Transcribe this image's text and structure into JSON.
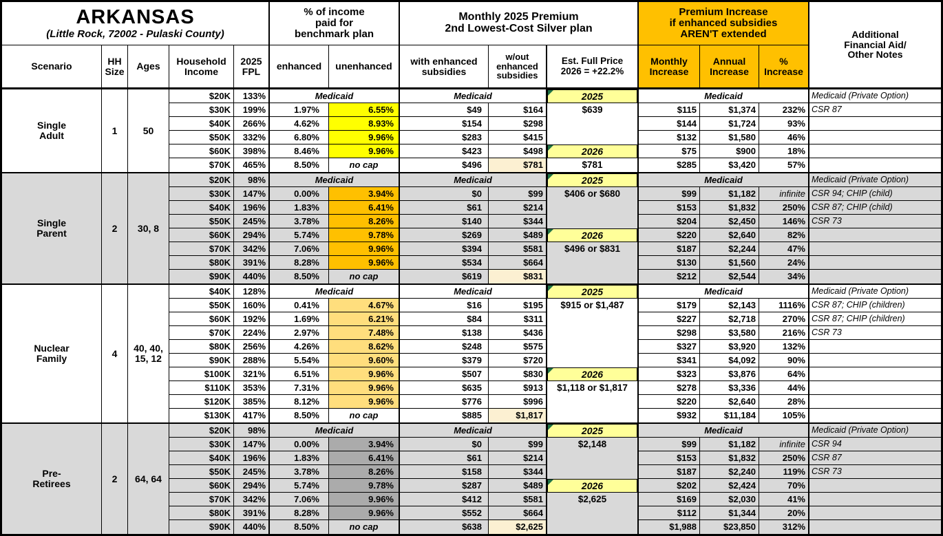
{
  "title": {
    "state": "ARKANSAS",
    "location": "(Little Rock, 72002 - Pulaski County)"
  },
  "headers": {
    "benchmark_block": "% of income\npaid for\nbenchmark plan",
    "premium_block": "Monthly 2025 Premium\n2nd Lowest-Cost Silver plan",
    "increase_block": "Premium Increase\nif enhanced subsidies\nAREN'T extended",
    "notes_block": "Additional\nFinancial Aid/\nOther Notes",
    "cols": {
      "scenario": "Scenario",
      "hh": "HH\nSize",
      "ages": "Ages",
      "income": "Household\nIncome",
      "fpl": "2025\nFPL",
      "enhanced": "enhanced",
      "unenhanced": "unenhanced",
      "with_sub": "with enhanced\nsubsidies",
      "wo_sub": "w/out\nenhanced\nsubsidies",
      "full_price": "Est. Full Price\n2026 = +22.2%",
      "monthly": "Monthly\nIncrease",
      "annual": "Annual\nIncrease",
      "pct": "%\nIncrease"
    }
  },
  "colors": {
    "header_orange": "#FFC000",
    "year_yellow": "#FFFF99",
    "cream": "#FCF0D2",
    "group_gray": "#D9D9D9",
    "hl_single_adult": "#FFFF00",
    "hl_single_parent": "#FFC000",
    "hl_nuclear": "#FFDE7D",
    "hl_preretirees": "#ABABAB",
    "marker_green": "#1E7145"
  },
  "medicaid_label": "Medicaid",
  "no_cap_label": "no cap",
  "groups": [
    {
      "id": "single-adult",
      "scenario": "Single\nAdult",
      "hh": "1",
      "ages": "50",
      "bg": "#FFFFFF",
      "hl": "#FFFF00",
      "rows": [
        {
          "income": "$20K",
          "fpl": "133%",
          "medicaid": true,
          "note": "Medicaid (Private Option)"
        },
        {
          "income": "$30K",
          "fpl": "199%",
          "enhanced": "1.97%",
          "unenhanced": "6.55%",
          "with_sub": "$49",
          "wo_sub": "$164",
          "monthly": "$115",
          "annual": "$1,374",
          "pct": "232%",
          "note": "CSR 87"
        },
        {
          "income": "$40K",
          "fpl": "266%",
          "enhanced": "4.62%",
          "unenhanced": "8.93%",
          "with_sub": "$154",
          "wo_sub": "$298",
          "monthly": "$144",
          "annual": "$1,724",
          "pct": "93%"
        },
        {
          "income": "$50K",
          "fpl": "332%",
          "enhanced": "6.80%",
          "unenhanced": "9.96%",
          "with_sub": "$283",
          "wo_sub": "$415",
          "monthly": "$132",
          "annual": "$1,580",
          "pct": "46%"
        },
        {
          "income": "$60K",
          "fpl": "398%",
          "enhanced": "8.46%",
          "unenhanced": "9.96%",
          "with_sub": "$423",
          "wo_sub": "$498",
          "monthly": "$75",
          "annual": "$900",
          "pct": "18%"
        },
        {
          "income": "$70K",
          "fpl": "465%",
          "enhanced": "8.50%",
          "no_cap": true,
          "with_sub": "$496",
          "wo_sub": "$781",
          "wo_cream": true,
          "monthly": "$285",
          "annual": "$3,420",
          "pct": "57%"
        }
      ],
      "full_price": [
        {
          "row": 0,
          "type": "year",
          "text": "2025"
        },
        {
          "row": 1,
          "type": "value",
          "text": "$639"
        },
        {
          "row": 4,
          "type": "year",
          "text": "2026"
        },
        {
          "row": 5,
          "type": "value",
          "text": "$781"
        }
      ]
    },
    {
      "id": "single-parent",
      "scenario": "Single\nParent",
      "hh": "2",
      "ages": "30, 8",
      "bg": "#D9D9D9",
      "hl": "#FFC000",
      "rows": [
        {
          "income": "$20K",
          "fpl": "98%",
          "medicaid": true,
          "note": "Medicaid (Private Option)"
        },
        {
          "income": "$30K",
          "fpl": "147%",
          "enhanced": "0.00%",
          "unenhanced": "3.94%",
          "with_sub": "$0",
          "wo_sub": "$99",
          "monthly": "$99",
          "annual": "$1,182",
          "pct": "infinite",
          "pct_infinite": true,
          "note": "CSR 94; CHIP (child)"
        },
        {
          "income": "$40K",
          "fpl": "196%",
          "enhanced": "1.83%",
          "unenhanced": "6.41%",
          "with_sub": "$61",
          "wo_sub": "$214",
          "monthly": "$153",
          "annual": "$1,832",
          "pct": "250%",
          "note": "CSR 87; CHIP (child)"
        },
        {
          "income": "$50K",
          "fpl": "245%",
          "enhanced": "3.78%",
          "unenhanced": "8.26%",
          "with_sub": "$140",
          "wo_sub": "$344",
          "monthly": "$204",
          "annual": "$2,450",
          "pct": "146%",
          "note": "CSR 73"
        },
        {
          "income": "$60K",
          "fpl": "294%",
          "enhanced": "5.74%",
          "unenhanced": "9.78%",
          "with_sub": "$269",
          "wo_sub": "$489",
          "monthly": "$220",
          "annual": "$2,640",
          "pct": "82%"
        },
        {
          "income": "$70K",
          "fpl": "342%",
          "enhanced": "7.06%",
          "unenhanced": "9.96%",
          "with_sub": "$394",
          "wo_sub": "$581",
          "monthly": "$187",
          "annual": "$2,244",
          "pct": "47%"
        },
        {
          "income": "$80K",
          "fpl": "391%",
          "enhanced": "8.28%",
          "unenhanced": "9.96%",
          "with_sub": "$534",
          "wo_sub": "$664",
          "monthly": "$130",
          "annual": "$1,560",
          "pct": "24%"
        },
        {
          "income": "$90K",
          "fpl": "440%",
          "enhanced": "8.50%",
          "no_cap": true,
          "with_sub": "$619",
          "wo_sub": "$831",
          "wo_cream": true,
          "monthly": "$212",
          "annual": "$2,544",
          "pct": "34%"
        }
      ],
      "full_price": [
        {
          "row": 0,
          "type": "year",
          "text": "2025"
        },
        {
          "row": 1,
          "type": "value",
          "text": "$406 or $680"
        },
        {
          "row": 4,
          "type": "year",
          "text": "2026"
        },
        {
          "row": 5,
          "type": "value",
          "text": "$496 or $831"
        }
      ]
    },
    {
      "id": "nuclear-family",
      "scenario": "Nuclear\nFamily",
      "hh": "4",
      "ages": "40, 40,\n15, 12",
      "bg": "#FFFFFF",
      "hl": "#FFDE7D",
      "rows": [
        {
          "income": "$40K",
          "fpl": "128%",
          "medicaid": true,
          "note": "Medicaid (Private Option)"
        },
        {
          "income": "$50K",
          "fpl": "160%",
          "enhanced": "0.41%",
          "unenhanced": "4.67%",
          "with_sub": "$16",
          "wo_sub": "$195",
          "monthly": "$179",
          "annual": "$2,143",
          "pct": "1116%",
          "note": "CSR 87; CHIP (children)"
        },
        {
          "income": "$60K",
          "fpl": "192%",
          "enhanced": "1.69%",
          "unenhanced": "6.21%",
          "with_sub": "$84",
          "wo_sub": "$311",
          "monthly": "$227",
          "annual": "$2,718",
          "pct": "270%",
          "note": "CSR 87; CHIP (children)"
        },
        {
          "income": "$70K",
          "fpl": "224%",
          "enhanced": "2.97%",
          "unenhanced": "7.48%",
          "with_sub": "$138",
          "wo_sub": "$436",
          "monthly": "$298",
          "annual": "$3,580",
          "pct": "216%",
          "note": "CSR 73"
        },
        {
          "income": "$80K",
          "fpl": "256%",
          "enhanced": "4.26%",
          "unenhanced": "8.62%",
          "with_sub": "$248",
          "wo_sub": "$575",
          "monthly": "$327",
          "annual": "$3,920",
          "pct": "132%"
        },
        {
          "income": "$90K",
          "fpl": "288%",
          "enhanced": "5.54%",
          "unenhanced": "9.60%",
          "with_sub": "$379",
          "wo_sub": "$720",
          "monthly": "$341",
          "annual": "$4,092",
          "pct": "90%"
        },
        {
          "income": "$100K",
          "fpl": "321%",
          "enhanced": "6.51%",
          "unenhanced": "9.96%",
          "with_sub": "$507",
          "wo_sub": "$830",
          "monthly": "$323",
          "annual": "$3,876",
          "pct": "64%"
        },
        {
          "income": "$110K",
          "fpl": "353%",
          "enhanced": "7.31%",
          "unenhanced": "9.96%",
          "with_sub": "$635",
          "wo_sub": "$913",
          "monthly": "$278",
          "annual": "$3,336",
          "pct": "44%"
        },
        {
          "income": "$120K",
          "fpl": "385%",
          "enhanced": "8.12%",
          "unenhanced": "9.96%",
          "with_sub": "$776",
          "wo_sub": "$996",
          "monthly": "$220",
          "annual": "$2,640",
          "pct": "28%"
        },
        {
          "income": "$130K",
          "fpl": "417%",
          "enhanced": "8.50%",
          "no_cap": true,
          "with_sub": "$885",
          "wo_sub": "$1,817",
          "wo_cream": true,
          "monthly": "$932",
          "annual": "$11,184",
          "pct": "105%"
        }
      ],
      "full_price": [
        {
          "row": 0,
          "type": "year",
          "text": "2025"
        },
        {
          "row": 1,
          "type": "value",
          "text": "$915 or $1,487"
        },
        {
          "row": 6,
          "type": "year",
          "text": "2026"
        },
        {
          "row": 7,
          "type": "value",
          "text": "$1,118 or $1,817"
        }
      ]
    },
    {
      "id": "pre-retirees",
      "scenario": "Pre-\nRetirees",
      "hh": "2",
      "ages": "64, 64",
      "bg": "#D9D9D9",
      "hl": "#ABABAB",
      "rows": [
        {
          "income": "$20K",
          "fpl": "98%",
          "medicaid": true,
          "note": "Medicaid (Private Option)"
        },
        {
          "income": "$30K",
          "fpl": "147%",
          "enhanced": "0.00%",
          "unenhanced": "3.94%",
          "with_sub": "$0",
          "wo_sub": "$99",
          "monthly": "$99",
          "annual": "$1,182",
          "pct": "infinite",
          "pct_infinite": true,
          "note": "CSR 94"
        },
        {
          "income": "$40K",
          "fpl": "196%",
          "enhanced": "1.83%",
          "unenhanced": "6.41%",
          "with_sub": "$61",
          "wo_sub": "$214",
          "monthly": "$153",
          "annual": "$1,832",
          "pct": "250%",
          "note": "CSR 87"
        },
        {
          "income": "$50K",
          "fpl": "245%",
          "enhanced": "3.78%",
          "unenhanced": "8.26%",
          "with_sub": "$158",
          "wo_sub": "$344",
          "monthly": "$187",
          "annual": "$2,240",
          "pct": "119%",
          "note": "CSR 73"
        },
        {
          "income": "$60K",
          "fpl": "294%",
          "enhanced": "5.74%",
          "unenhanced": "9.78%",
          "with_sub": "$287",
          "wo_sub": "$489",
          "monthly": "$202",
          "annual": "$2,424",
          "pct": "70%"
        },
        {
          "income": "$70K",
          "fpl": "342%",
          "enhanced": "7.06%",
          "unenhanced": "9.96%",
          "with_sub": "$412",
          "wo_sub": "$581",
          "monthly": "$169",
          "annual": "$2,030",
          "pct": "41%"
        },
        {
          "income": "$80K",
          "fpl": "391%",
          "enhanced": "8.28%",
          "unenhanced": "9.96%",
          "with_sub": "$552",
          "wo_sub": "$664",
          "monthly": "$112",
          "annual": "$1,344",
          "pct": "20%"
        },
        {
          "income": "$90K",
          "fpl": "440%",
          "enhanced": "8.50%",
          "no_cap": true,
          "with_sub": "$638",
          "wo_sub": "$2,625",
          "wo_cream": true,
          "monthly": "$1,988",
          "annual": "$23,850",
          "pct": "312%"
        }
      ],
      "full_price": [
        {
          "row": 0,
          "type": "year",
          "text": "2025"
        },
        {
          "row": 1,
          "type": "value",
          "text": "$2,148"
        },
        {
          "row": 4,
          "type": "year",
          "text": "2026"
        },
        {
          "row": 5,
          "type": "value",
          "text": "$2,625"
        }
      ]
    }
  ]
}
